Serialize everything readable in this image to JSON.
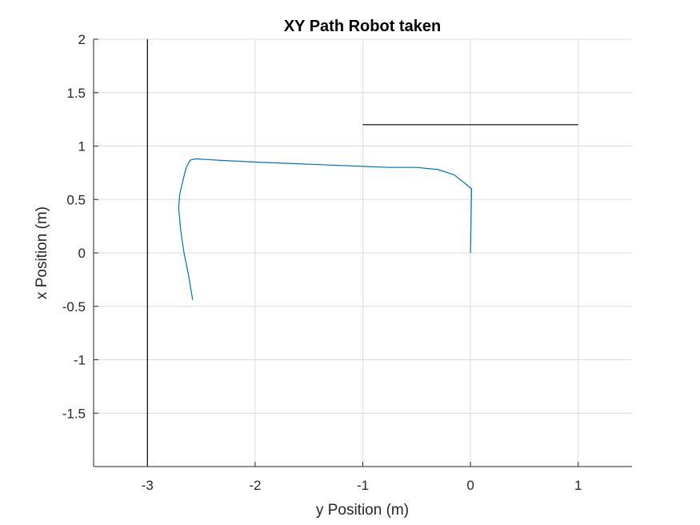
{
  "chart_data": {
    "type": "line",
    "title": "XY Path Robot taken",
    "xlabel": "y Position (m)",
    "ylabel": "x Position (m)",
    "xlim": [
      -3.5,
      1.5
    ],
    "ylim": [
      -2.0,
      2.0
    ],
    "xticks": [
      -3,
      -2,
      -1,
      0,
      1
    ],
    "yticks": [
      2,
      1.5,
      1,
      0.5,
      0,
      -0.5,
      -1,
      -1.5
    ],
    "xtick_labels": [
      "-3",
      "-2",
      "-1",
      "0",
      "1"
    ],
    "ytick_labels": [
      "2",
      "1.5",
      "1",
      "0.5",
      "0",
      "-0.5",
      "-1",
      "-1.5"
    ],
    "grid": true,
    "series": [
      {
        "color": "#0072BD",
        "x": [
          0.0,
          0.005,
          0.01,
          -0.05,
          -0.15,
          -0.3,
          -0.5,
          -0.75,
          -1.0,
          -1.5,
          -2.0,
          -2.3,
          -2.55,
          -2.6,
          -2.64,
          -2.67,
          -2.7,
          -2.71,
          -2.69,
          -2.66,
          -2.62,
          -2.58
        ],
        "y": [
          0.0,
          0.3,
          0.6,
          0.65,
          0.73,
          0.78,
          0.8,
          0.8,
          0.81,
          0.83,
          0.85,
          0.865,
          0.88,
          0.87,
          0.8,
          0.68,
          0.55,
          0.42,
          0.2,
          0.0,
          -0.2,
          -0.44
        ]
      },
      {
        "color": "#000000",
        "x": [
          -3.0,
          -3.0
        ],
        "y": [
          2.0,
          -2.0
        ]
      },
      {
        "color": "#000000",
        "x": [
          -1.0,
          1.0
        ],
        "y": [
          1.2,
          1.2
        ]
      }
    ]
  }
}
